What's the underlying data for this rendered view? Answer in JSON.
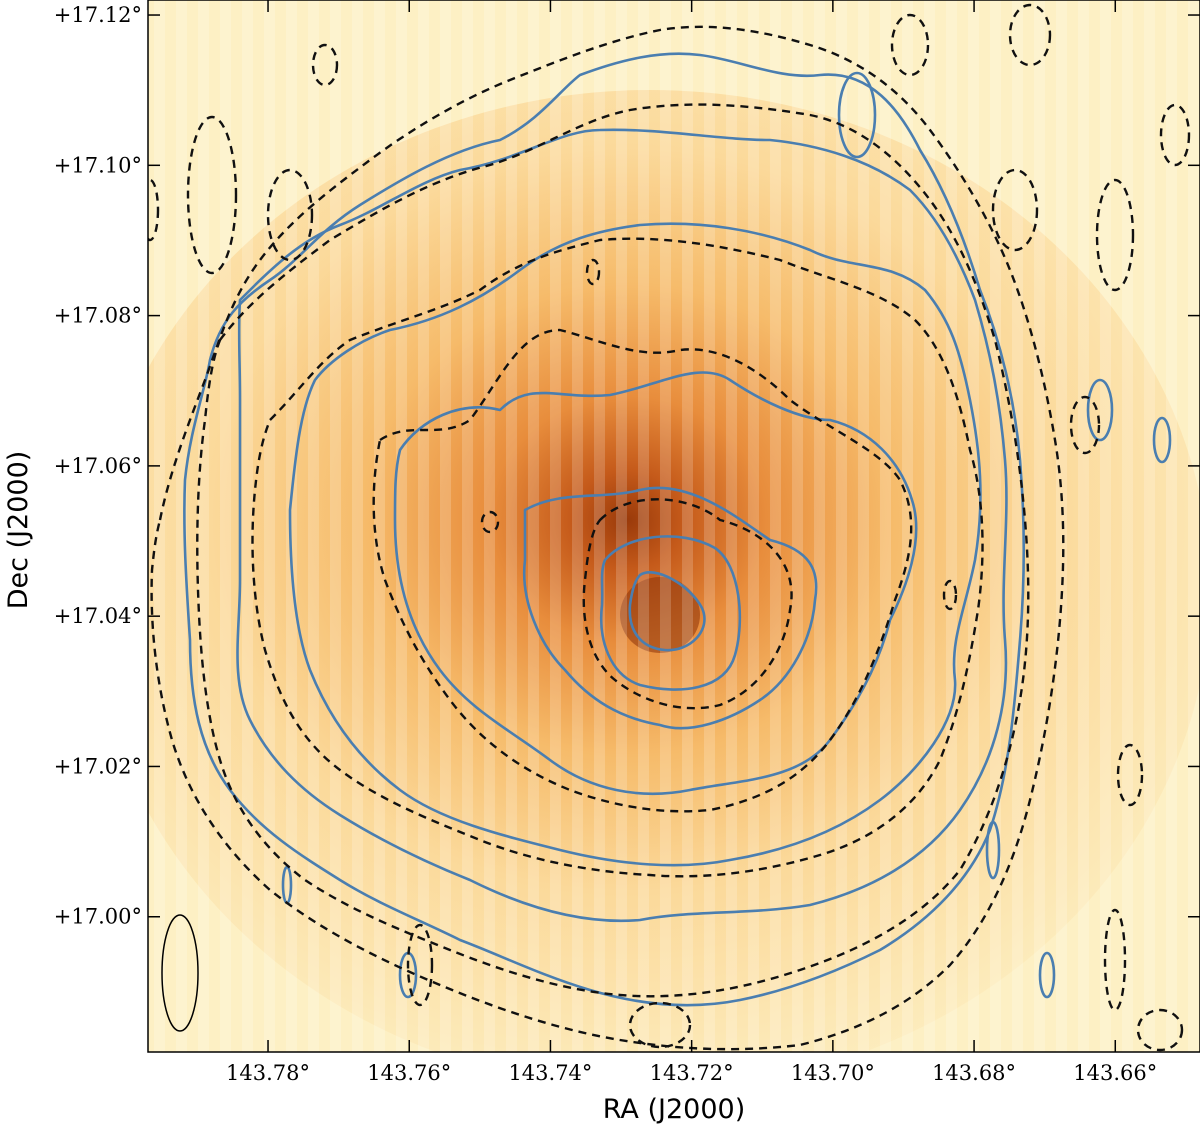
{
  "figure": {
    "xlabel": "RA (J2000)",
    "ylabel": "Dec (J2000)",
    "x_ticks": [
      "143.78°",
      "143.76°",
      "143.74°",
      "143.72°",
      "143.70°",
      "143.68°",
      "143.66°"
    ],
    "y_ticks": [
      "+17.12°",
      "+17.10°",
      "+17.08°",
      "+17.06°",
      "+17.04°",
      "+17.02°",
      "+17.00°"
    ],
    "x_range_deg": [
      143.797,
      143.648
    ],
    "y_range_deg": [
      16.982,
      17.122
    ],
    "x_tick_values": [
      143.78,
      143.76,
      143.74,
      143.72,
      143.7,
      143.68,
      143.66
    ],
    "y_tick_values": [
      17.12,
      17.1,
      17.08,
      17.06,
      17.04,
      17.02,
      17.0
    ],
    "peak_position": {
      "ra": 143.724,
      "dec": 17.04
    },
    "colors": {
      "background": "#fdf0c4",
      "peak": "#9a3a0a",
      "solid_contours": "#4a7eb0",
      "dashed_contours": "#111111",
      "beam": "#000000"
    },
    "contour_styles": [
      "solid-blue",
      "dashed-black"
    ]
  }
}
